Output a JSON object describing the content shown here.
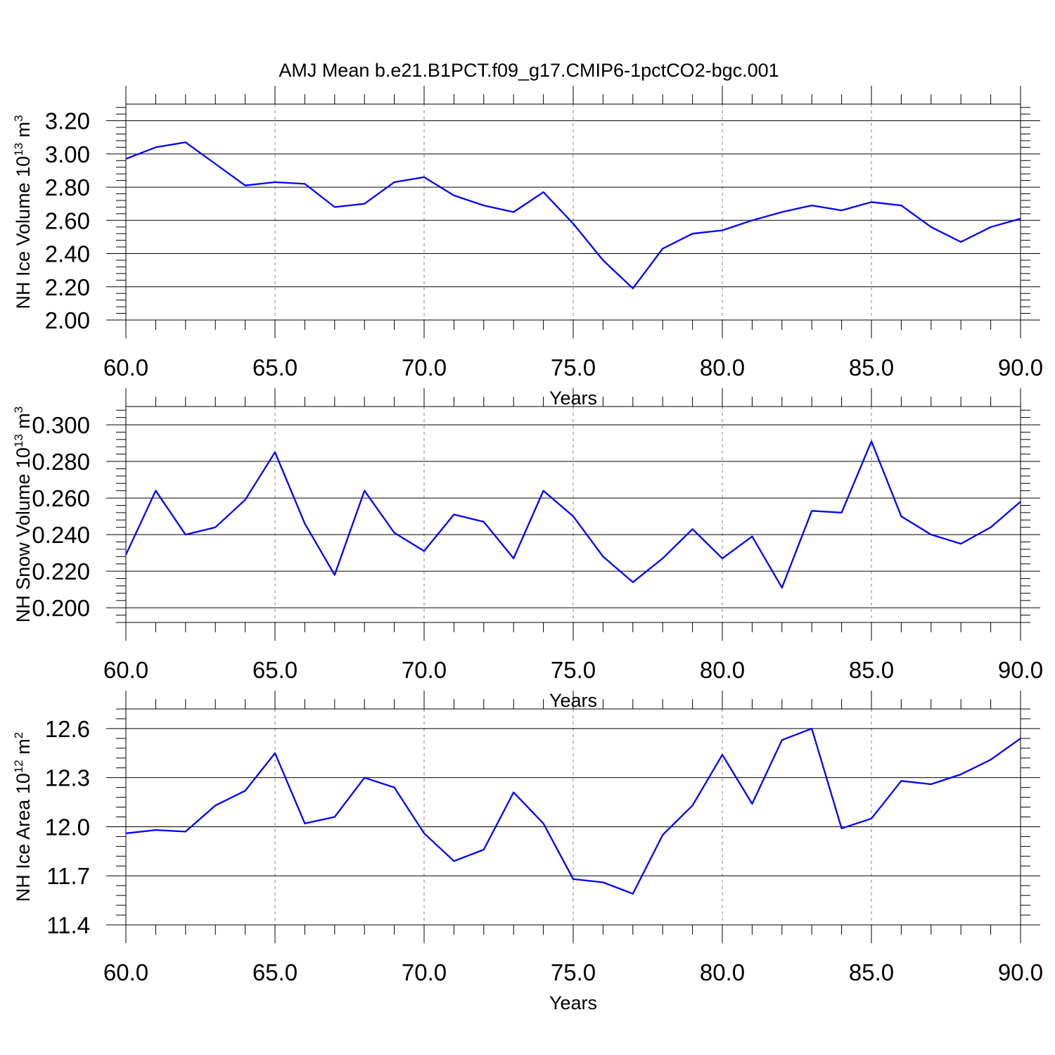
{
  "title": "AMJ Mean b.e21.B1PCT.f09_g17.CMIP6-1pctCO2-bgc.001",
  "colors": {
    "series": "#0000ff",
    "axes": "#000000",
    "grid": "#808080"
  },
  "chart_data": [
    {
      "type": "line",
      "ylabel": {
        "prefix": "NH Ice Volume 10",
        "exp": "13",
        "unit": " m",
        "unit_exp": "3"
      },
      "xlabel": "Years",
      "xlim": [
        60,
        90
      ],
      "ylim": [
        2.0,
        3.3
      ],
      "xticks": [
        "60.0",
        "65.0",
        "70.0",
        "75.0",
        "80.0",
        "85.0",
        "90.0"
      ],
      "yticks": [
        "2.00",
        "2.20",
        "2.40",
        "2.60",
        "2.80",
        "3.00",
        "3.20"
      ],
      "grid": "vertical dashed at major x ticks",
      "x": [
        60,
        61,
        62,
        63,
        64,
        65,
        66,
        67,
        68,
        69,
        70,
        71,
        72,
        73,
        74,
        75,
        76,
        77,
        78,
        79,
        80,
        81,
        82,
        83,
        84,
        85,
        86,
        87,
        88,
        89,
        90
      ],
      "y": [
        2.97,
        3.04,
        3.07,
        2.94,
        2.81,
        2.83,
        2.82,
        2.68,
        2.7,
        2.83,
        2.86,
        2.75,
        2.69,
        2.65,
        2.77,
        2.58,
        2.36,
        2.19,
        2.43,
        2.52,
        2.54,
        2.6,
        2.65,
        2.69,
        2.66,
        2.71,
        2.69,
        2.56,
        2.47,
        2.56,
        2.61
      ]
    },
    {
      "type": "line",
      "ylabel": {
        "prefix": "NH Snow Volume 10",
        "exp": "13",
        "unit": " m",
        "unit_exp": "3"
      },
      "xlabel": "Years",
      "xlim": [
        60,
        90
      ],
      "ylim": [
        0.192,
        0.31
      ],
      "xticks": [
        "60.0",
        "65.0",
        "70.0",
        "75.0",
        "80.0",
        "85.0",
        "90.0"
      ],
      "yticks": [
        "0.200",
        "0.220",
        "0.240",
        "0.260",
        "0.280",
        "0.300"
      ],
      "grid": "vertical dashed at major x ticks",
      "x": [
        60,
        61,
        62,
        63,
        64,
        65,
        66,
        67,
        68,
        69,
        70,
        71,
        72,
        73,
        74,
        75,
        76,
        77,
        78,
        79,
        80,
        81,
        82,
        83,
        84,
        85,
        86,
        87,
        88,
        89,
        90
      ],
      "y": [
        0.229,
        0.264,
        0.24,
        0.244,
        0.259,
        0.285,
        0.246,
        0.218,
        0.264,
        0.241,
        0.231,
        0.251,
        0.247,
        0.227,
        0.264,
        0.25,
        0.228,
        0.214,
        0.227,
        0.243,
        0.227,
        0.239,
        0.211,
        0.253,
        0.252,
        0.291,
        0.25,
        0.24,
        0.235,
        0.244,
        0.258
      ]
    },
    {
      "type": "line",
      "ylabel": {
        "prefix": "NH Ice Area 10",
        "exp": "12",
        "unit": " m",
        "unit_exp": "2"
      },
      "xlabel": "Years",
      "xlim": [
        60,
        90
      ],
      "ylim": [
        11.4,
        12.72
      ],
      "xticks": [
        "60.0",
        "65.0",
        "70.0",
        "75.0",
        "80.0",
        "85.0",
        "90.0"
      ],
      "yticks": [
        "11.4",
        "11.7",
        "12.0",
        "12.3",
        "12.6"
      ],
      "grid": "vertical dashed at major x ticks",
      "x": [
        60,
        61,
        62,
        63,
        64,
        65,
        66,
        67,
        68,
        69,
        70,
        71,
        72,
        73,
        74,
        75,
        76,
        77,
        78,
        79,
        80,
        81,
        82,
        83,
        84,
        85,
        86,
        87,
        88,
        89,
        90
      ],
      "y": [
        11.96,
        11.98,
        11.97,
        12.13,
        12.22,
        12.45,
        12.02,
        12.06,
        12.3,
        12.24,
        11.96,
        11.79,
        11.86,
        12.21,
        12.02,
        11.68,
        11.66,
        11.59,
        11.95,
        12.13,
        12.44,
        12.14,
        12.53,
        12.6,
        11.99,
        12.05,
        12.28,
        12.26,
        12.32,
        12.41,
        12.54
      ]
    }
  ]
}
